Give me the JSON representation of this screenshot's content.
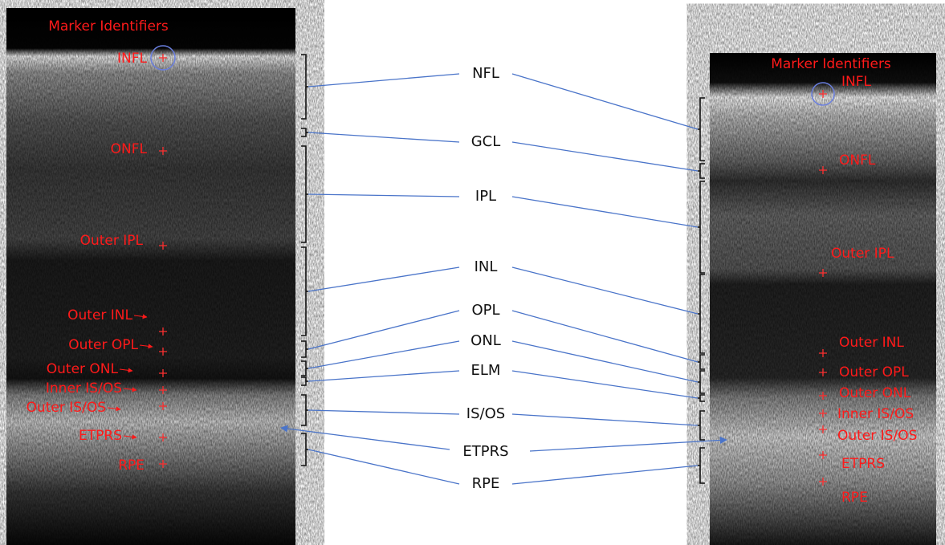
{
  "left_image": {
    "title": "Marker Identifiers",
    "markers": [
      "INFL",
      "ONFL",
      "Outer IPL",
      "Outer INL",
      "Outer OPL",
      "Outer ONL",
      "Inner IS/OS",
      "Outer IS/OS",
      "ETPRS",
      "RPE"
    ]
  },
  "right_image": {
    "title": "Marker Identifiers",
    "markers": [
      "INFL",
      "ONFL",
      "Outer IPL",
      "Outer INL",
      "Outer OPL",
      "Outer ONL",
      "Inner IS/OS",
      "Outer IS/OS",
      "ETPRS",
      "RPE"
    ]
  },
  "layers": [
    "NFL",
    "GCL",
    "IPL",
    "INL",
    "OPL",
    "ONL",
    "ELM",
    "IS/OS",
    "ETPRS",
    "RPE"
  ]
}
